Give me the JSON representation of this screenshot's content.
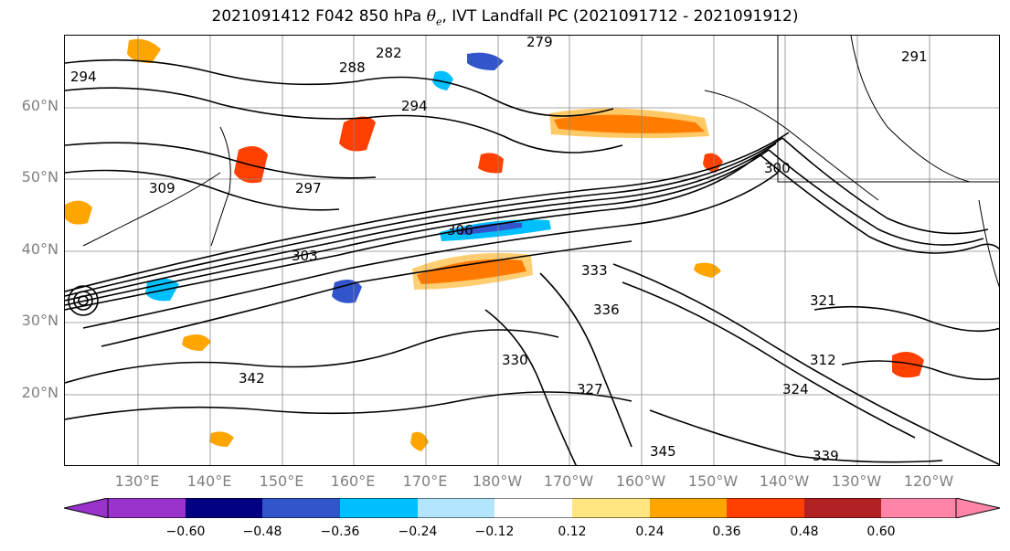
{
  "title": {
    "prefix": "2021091412 F042 850 hPa ",
    "symbol": "θ",
    "subscript": "e",
    "suffix": ", IVT Landfall PC (2021091712 - 2021091912)"
  },
  "map": {
    "lat_labels": [
      "60°N",
      "50°N",
      "40°N",
      "30°N",
      "20°N"
    ],
    "lon_labels": [
      "130°E",
      "140°E",
      "150°E",
      "160°E",
      "170°E",
      "180°W",
      "170°W",
      "160°W",
      "150°W",
      "140°W",
      "130°W",
      "120°W"
    ],
    "contour_labels": [
      "279",
      "282",
      "288",
      "291",
      "294",
      "294",
      "297",
      "300",
      "303",
      "306",
      "309",
      "312",
      "321",
      "324",
      "327",
      "330",
      "333",
      "336",
      "339",
      "342",
      "345"
    ]
  },
  "colorbar": {
    "ticks": [
      "−0.60",
      "−0.48",
      "−0.36",
      "−0.24",
      "−0.12",
      "0.12",
      "0.24",
      "0.36",
      "0.48",
      "0.60"
    ],
    "colors": [
      "#9933cc",
      "#000080",
      "#3355cc",
      "#00bfff",
      "#b3e5fc",
      "#ffffff",
      "#ffe680",
      "#ffa500",
      "#ff4000",
      "#b22222",
      "#ff85a8"
    ]
  }
}
